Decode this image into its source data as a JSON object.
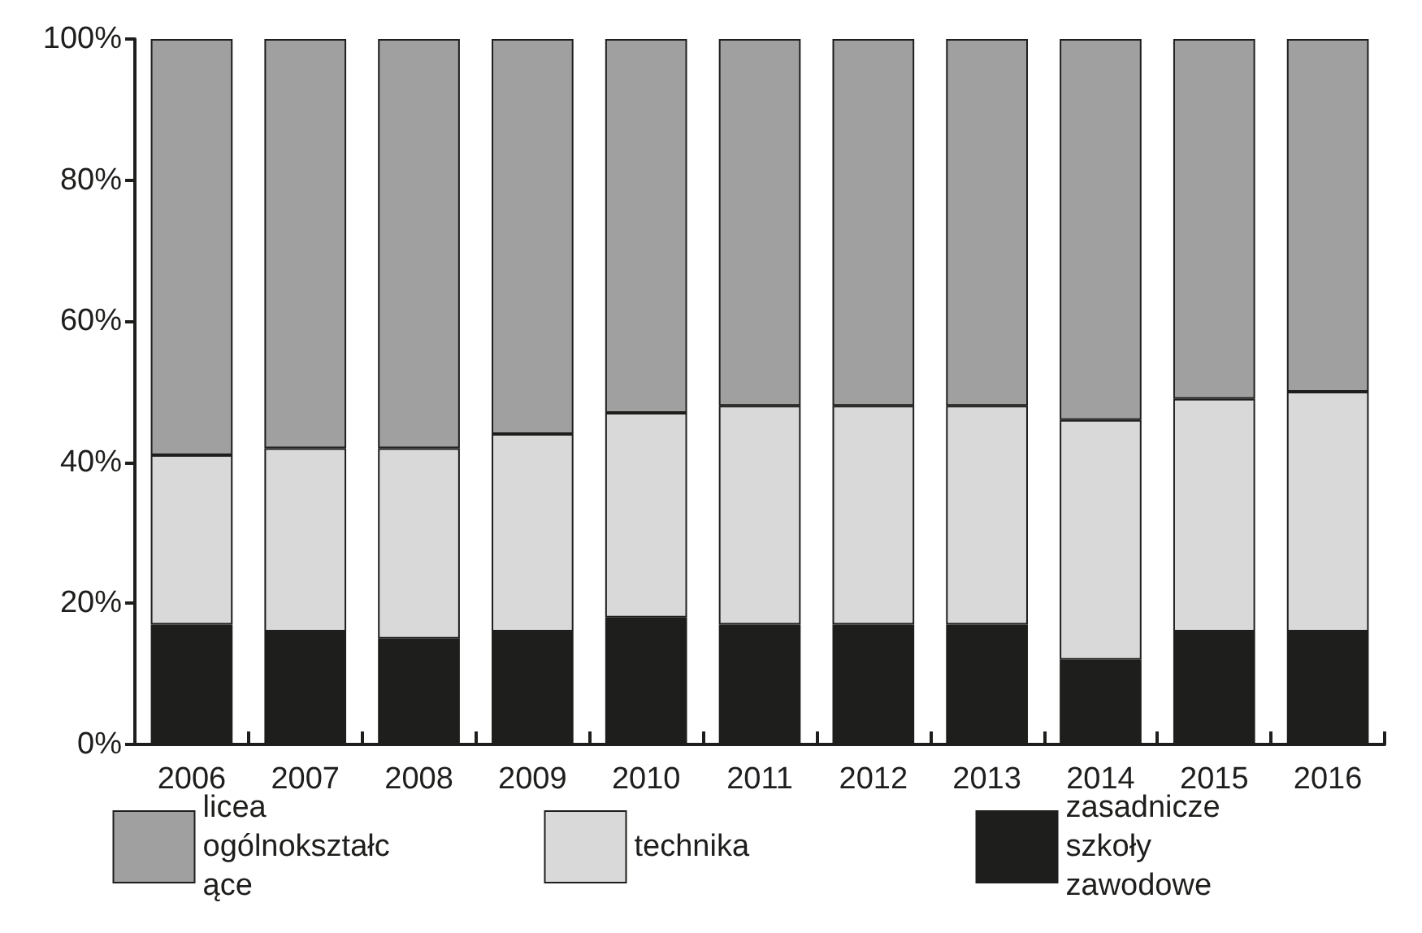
{
  "chart_data": {
    "type": "bar",
    "stacked": true,
    "categories": [
      "2006",
      "2007",
      "2008",
      "2009",
      "2010",
      "2011",
      "2012",
      "2013",
      "2014",
      "2015",
      "2016"
    ],
    "series": [
      {
        "name": "zasadnicze szkoły zawodowe",
        "color": "#1e1e1c",
        "values": [
          17,
          16,
          15,
          16,
          18,
          17,
          17,
          17,
          12,
          16,
          16
        ]
      },
      {
        "name": "technika",
        "color": "#d9d9d9",
        "values": [
          24,
          26,
          27,
          28,
          29,
          31,
          31,
          31,
          34,
          33,
          34
        ]
      },
      {
        "name": "licea ogólnokształcące",
        "color": "#a0a0a0",
        "values": [
          59,
          58,
          58,
          56,
          53,
          52,
          52,
          52,
          54,
          51,
          50
        ]
      }
    ],
    "ylim": [
      0,
      100
    ],
    "yticks": [
      {
        "value": 0,
        "label": "0%"
      },
      {
        "value": 20,
        "label": "20%"
      },
      {
        "value": 40,
        "label": "40%"
      },
      {
        "value": 60,
        "label": "60%"
      },
      {
        "value": 80,
        "label": "80%"
      },
      {
        "value": 100,
        "label": "100%"
      }
    ],
    "grid": false,
    "legend": "bottom"
  }
}
